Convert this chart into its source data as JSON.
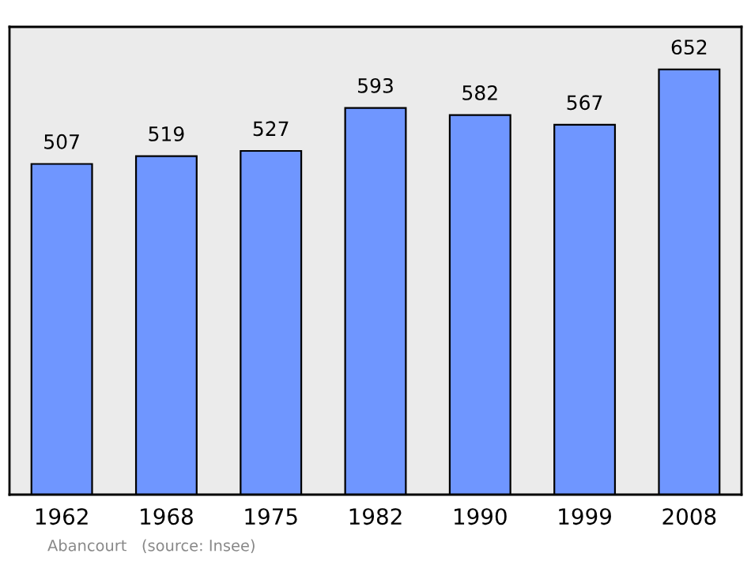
{
  "chart_data": {
    "type": "bar",
    "categories": [
      "1962",
      "1968",
      "1975",
      "1982",
      "1990",
      "1999",
      "2008"
    ],
    "values": [
      507,
      519,
      527,
      593,
      582,
      567,
      652
    ],
    "color": "#6f96ff",
    "data_labels": true,
    "grid": false,
    "annotations": [
      "Abancourt   (source: Insee)"
    ]
  }
}
